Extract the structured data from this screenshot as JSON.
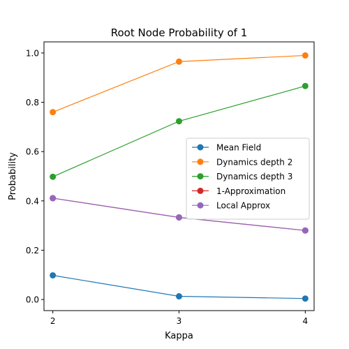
{
  "chart_data": {
    "type": "line",
    "title": "Root Node Probability of 1",
    "xlabel": "Kappa",
    "ylabel": "Probability",
    "x": [
      2,
      3,
      4
    ],
    "xticks": [
      "2",
      "3",
      "4"
    ],
    "yticks": [
      "0.0",
      "0.2",
      "0.4",
      "0.6",
      "0.8",
      "1.0"
    ],
    "xlim": [
      1.93,
      4.07
    ],
    "ylim": [
      -0.045,
      1.045
    ],
    "grid": false,
    "legend_position": "center-right",
    "series": [
      {
        "name": "Mean Field",
        "color": "#1f77b4",
        "values": [
          0.098,
          0.013,
          0.004
        ]
      },
      {
        "name": "Dynamics depth 2",
        "color": "#ff7f0e",
        "values": [
          0.76,
          0.965,
          0.99
        ]
      },
      {
        "name": "Dynamics depth 3",
        "color": "#2ca02c",
        "values": [
          0.498,
          0.723,
          0.866
        ]
      },
      {
        "name": "1-Approximation",
        "color": "#d62728",
        "values": [
          0.411,
          0.333,
          0.28
        ]
      },
      {
        "name": "Local Approx",
        "color": "#9467bd",
        "values": [
          0.411,
          0.333,
          0.28
        ]
      }
    ]
  }
}
